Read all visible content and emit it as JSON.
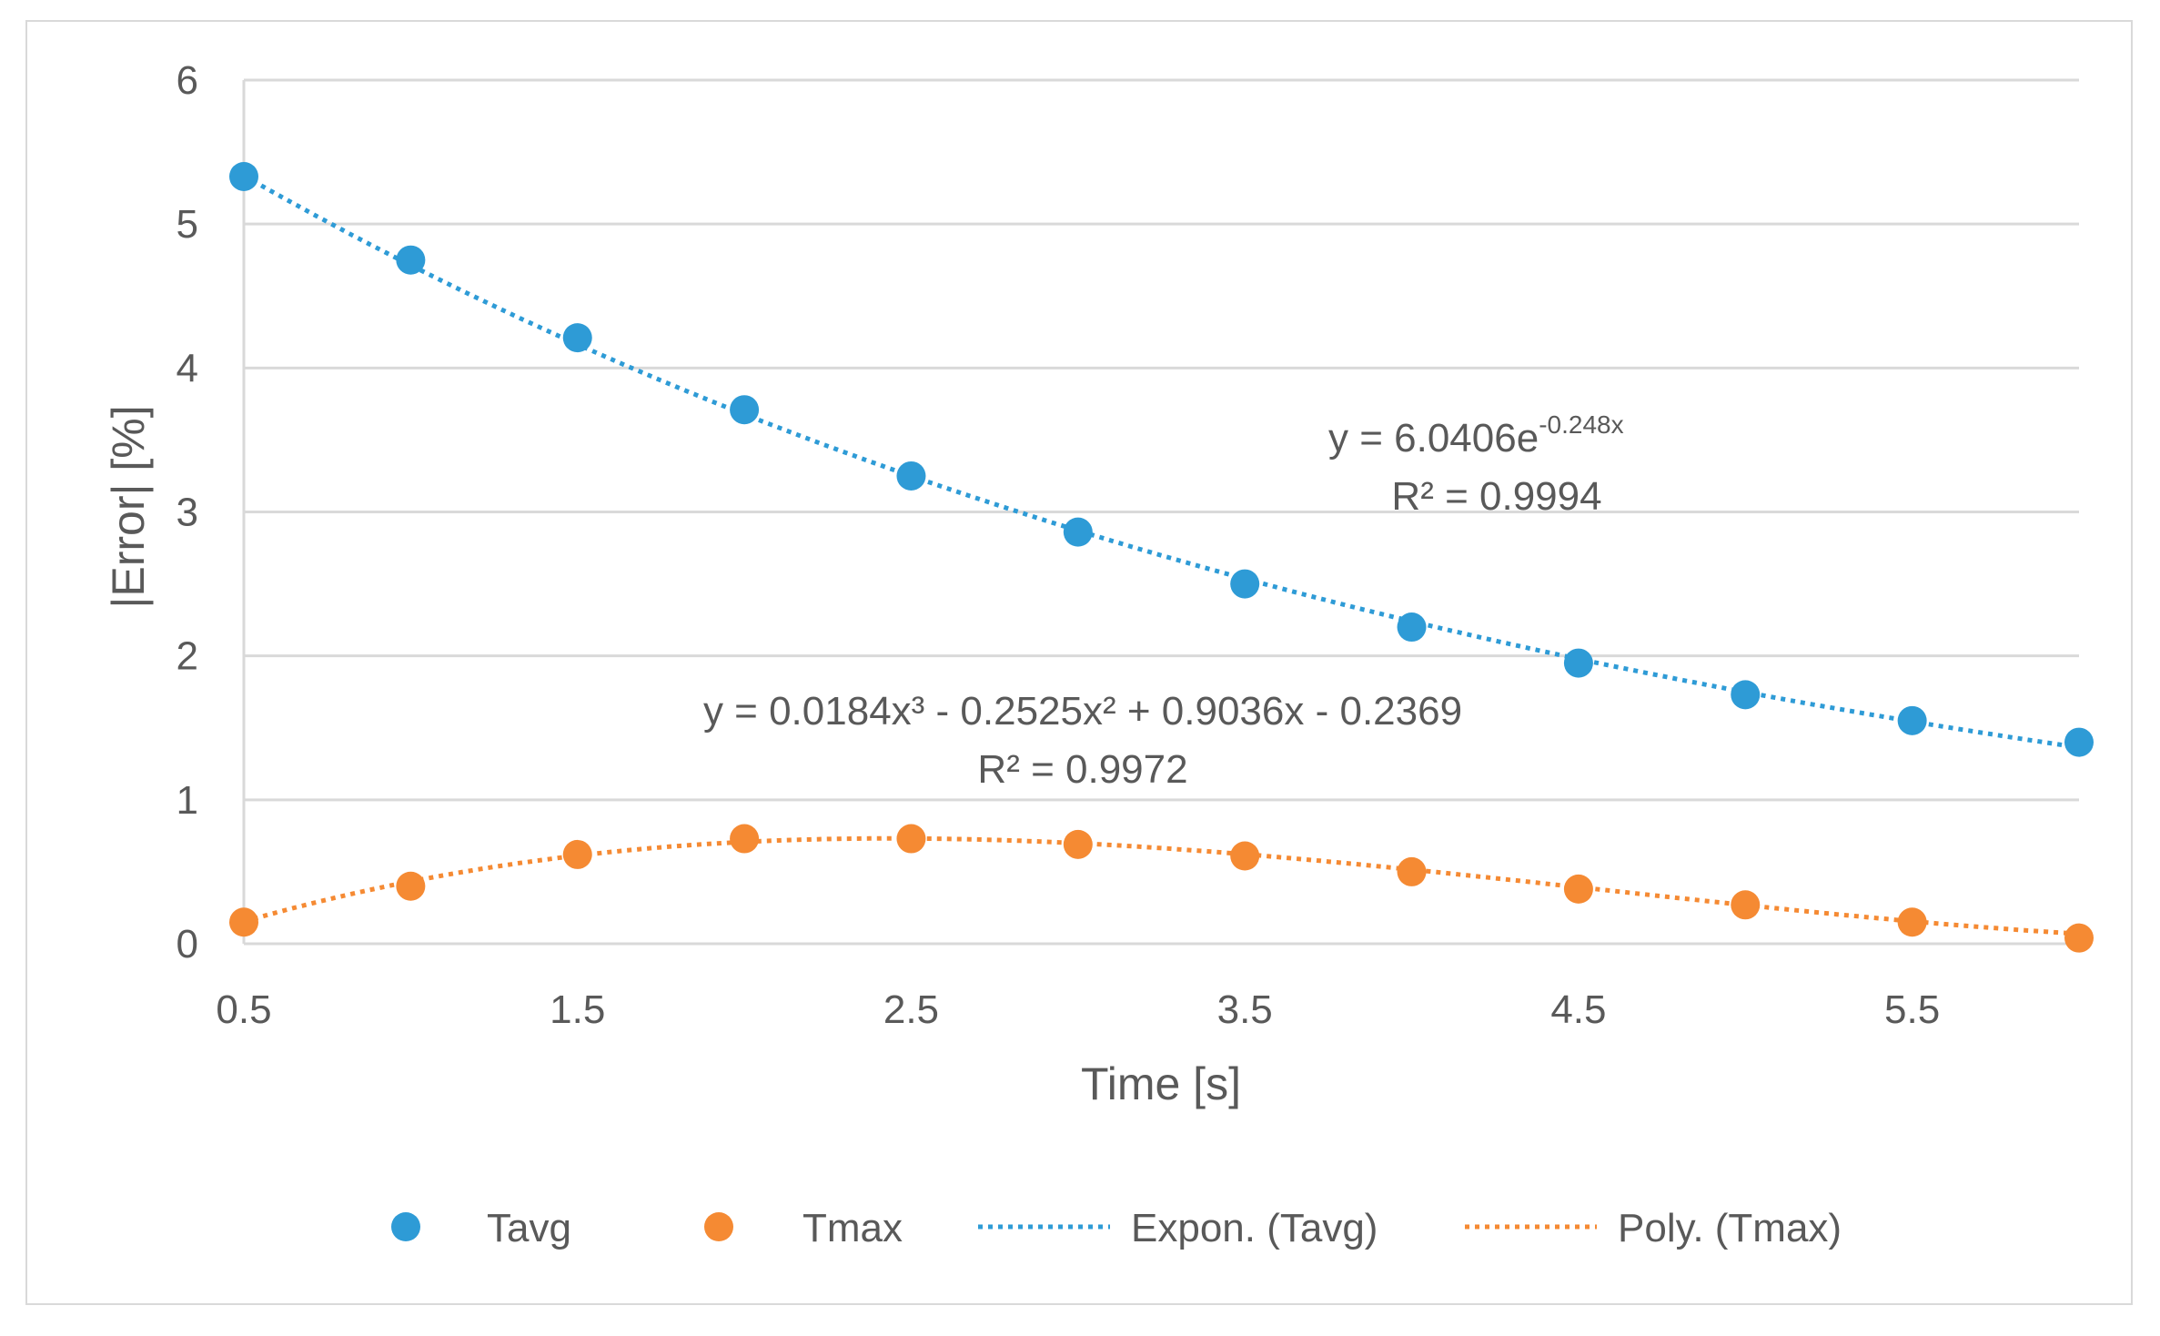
{
  "chart_data": {
    "type": "scatter",
    "xlabel": "Time [s]",
    "ylabel": "|Error| [%]",
    "xlim": [
      0.5,
      6.0
    ],
    "ylim": [
      0,
      6
    ],
    "x_ticks": [
      "0.5",
      "1.5",
      "2.5",
      "3.5",
      "4.5",
      "5.5"
    ],
    "x_tick_values": [
      0.5,
      1.5,
      2.5,
      3.5,
      4.5,
      5.5
    ],
    "y_ticks": [
      "0",
      "1",
      "2",
      "3",
      "4",
      "5",
      "6"
    ],
    "y_tick_values": [
      0,
      1,
      2,
      3,
      4,
      5,
      6
    ],
    "grid": true,
    "x": [
      0.5,
      1.0,
      1.5,
      2.0,
      2.5,
      3.0,
      3.5,
      4.0,
      4.5,
      5.0,
      5.5,
      6.0
    ],
    "series": [
      {
        "name": "Tavg",
        "color": "#2e9bd6",
        "values": [
          5.33,
          4.75,
          4.21,
          3.71,
          3.25,
          2.86,
          2.5,
          2.2,
          1.95,
          1.73,
          1.55,
          1.4
        ]
      },
      {
        "name": "Tmax",
        "color": "#f58a33",
        "values": [
          0.15,
          0.4,
          0.62,
          0.73,
          0.73,
          0.69,
          0.61,
          0.5,
          0.38,
          0.27,
          0.15,
          0.04
        ]
      }
    ],
    "trendlines": [
      {
        "name": "Expon. (Tavg)",
        "of": "Tavg",
        "kind": "exponential",
        "a": 6.0406,
        "b": -0.248,
        "color": "#2e9bd6",
        "equation_prefix": "y = 6.0406e",
        "equation_exponent": "-0.248x",
        "r2_label": "R² = 0.9994"
      },
      {
        "name": "Poly. (Tmax)",
        "of": "Tmax",
        "kind": "polynomial",
        "coefficients": [
          0.0184,
          -0.2525,
          0.9036,
          -0.2369
        ],
        "color": "#f58a33",
        "equation": "y = 0.0184x³ - 0.2525x² + 0.9036x - 0.2369",
        "r2_label": "R² = 0.9972"
      }
    ],
    "legend": {
      "position": "bottom",
      "entries": [
        "Tavg",
        "Tmax",
        "Expon. (Tavg)",
        "Poly. (Tmax)"
      ]
    }
  }
}
